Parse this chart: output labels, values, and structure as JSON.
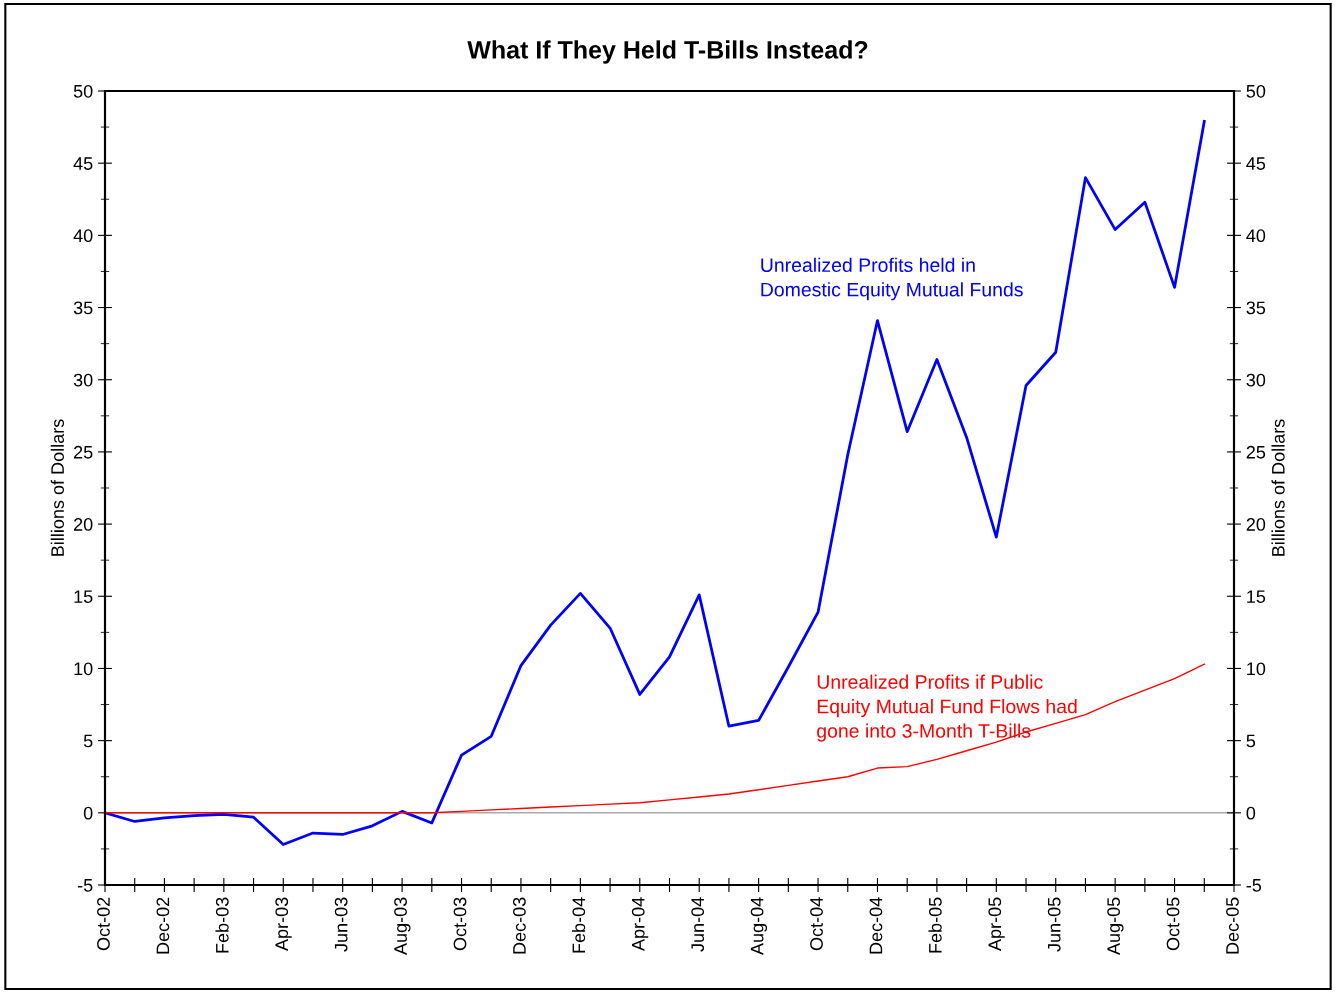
{
  "chart_data": {
    "type": "line",
    "title": "What If They Held T-Bills Instead?",
    "ylabel": "Billions of Dollars",
    "y2label": "Billions of Dollars",
    "categories": [
      "Oct-02",
      null,
      "Dec-02",
      null,
      "Feb-03",
      null,
      "Apr-03",
      null,
      "Jun-03",
      null,
      "Aug-03",
      null,
      "Oct-03",
      null,
      "Dec-03",
      null,
      "Feb-04",
      null,
      "Apr-04",
      null,
      "Jun-04",
      null,
      "Aug-04",
      null,
      "Oct-04",
      null,
      "Dec-04",
      null,
      "Feb-05",
      null,
      "Apr-05",
      null,
      "Jun-05",
      null,
      "Aug-05",
      null,
      "Oct-05",
      null,
      "Dec-05"
    ],
    "series": [
      {
        "color": "#0000ff",
        "values": [
          0,
          -0.6,
          -0.35,
          -0.2,
          -0.1,
          -0.3,
          -2.2,
          -1.4,
          -1.5,
          -0.9,
          0.1,
          -0.7,
          4.0,
          5.3,
          10.2,
          13.0,
          15.2,
          12.8,
          8.2,
          10.8,
          15.1,
          6.0,
          6.4,
          10.1,
          13.9,
          24.8,
          34.1,
          26.4,
          31.4,
          26.0,
          19.1,
          29.6,
          31.9,
          44.0,
          40.4,
          42.3,
          36.4,
          47.9,
          null
        ]
      },
      {
        "color": "#ff0000",
        "values": [
          0,
          0,
          0,
          0,
          0,
          0,
          0,
          0,
          0,
          0,
          0,
          0,
          0.1,
          0.2,
          0.3,
          0.4,
          0.5,
          0.6,
          0.7,
          0.9,
          1.1,
          1.3,
          1.6,
          1.9,
          2.2,
          2.5,
          3.1,
          3.2,
          3.7,
          4.3,
          4.9,
          5.6,
          6.2,
          6.8,
          7.7,
          8.5,
          9.3,
          10.3,
          null
        ]
      }
    ],
    "ylim": [
      -5,
      50
    ],
    "yticks": [
      -5,
      0,
      5,
      10,
      15,
      20,
      25,
      30,
      35,
      40,
      45,
      50
    ],
    "y2lim": [
      -5,
      50
    ],
    "y2ticks": [
      -5,
      0,
      5,
      10,
      15,
      20,
      25,
      30,
      35,
      40,
      45,
      50
    ],
    "ref_lines": [
      {
        "axis": "y",
        "value": 0,
        "color": "#aaaaaa"
      }
    ],
    "annotations": [
      "Unrealized Profits held in\nDomestic Equity Mutual Funds",
      "Unrealized Profits if Public\nEquity Mutual Fund Flows had\ngone into 3-Month T-Bills"
    ],
    "grid": false,
    "legend": false,
    "marker": "none",
    "line_style": "solid"
  }
}
